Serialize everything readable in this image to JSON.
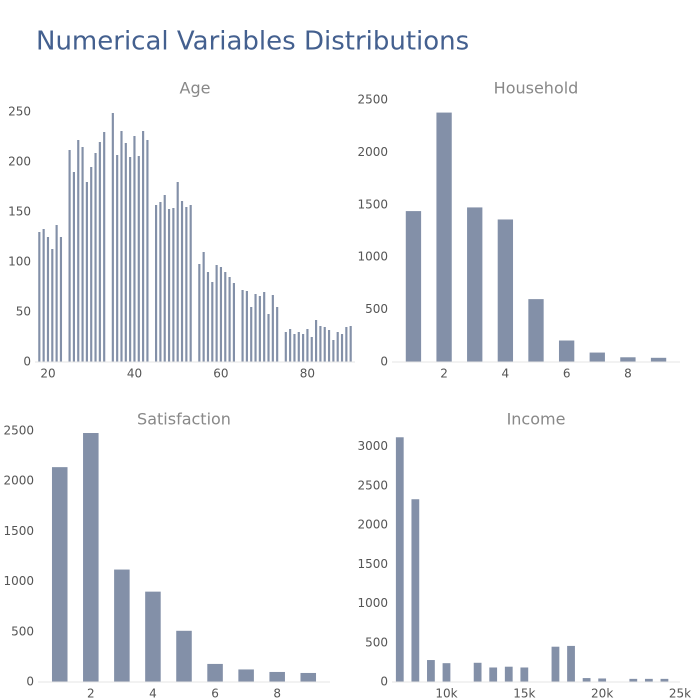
{
  "title": "Numerical Variables Distributions",
  "chart_data": [
    {
      "type": "bar",
      "title": "Age",
      "color": "#8390a8",
      "x": [
        18,
        19,
        20,
        21,
        22,
        23,
        25,
        26,
        27,
        28,
        29,
        30,
        31,
        32,
        33,
        35,
        36,
        37,
        38,
        39,
        40,
        41,
        42,
        43,
        45,
        46,
        47,
        48,
        49,
        50,
        51,
        52,
        53,
        55,
        56,
        57,
        58,
        59,
        60,
        61,
        62,
        63,
        65,
        66,
        67,
        68,
        69,
        70,
        71,
        72,
        73,
        75,
        76,
        77,
        78,
        79,
        80,
        81,
        82,
        83,
        84,
        85,
        86,
        87,
        88,
        89,
        90
      ],
      "values": [
        130,
        133,
        125,
        113,
        137,
        125,
        212,
        190,
        222,
        215,
        180,
        195,
        209,
        220,
        230,
        249,
        207,
        231,
        219,
        205,
        226,
        206,
        231,
        222,
        157,
        160,
        167,
        153,
        154,
        180,
        161,
        155,
        157,
        98,
        110,
        90,
        80,
        97,
        95,
        90,
        85,
        79,
        72,
        71,
        55,
        68,
        66,
        70,
        48,
        67,
        55,
        30,
        33,
        28,
        30,
        28,
        33,
        25,
        42,
        36,
        35,
        32,
        22,
        30,
        28,
        35,
        36
      ],
      "xlim": [
        17,
        91
      ],
      "xticks": [
        20,
        40,
        60,
        80
      ],
      "ylim": [
        0,
        262
      ],
      "yticks": [
        0,
        50,
        100,
        150,
        200,
        250
      ]
    },
    {
      "type": "bar",
      "title": "Household",
      "color": "#8390a8",
      "x": [
        1,
        2,
        3,
        4,
        5,
        6,
        7,
        8,
        9
      ],
      "values": [
        1440,
        2380,
        1475,
        1360,
        600,
        205,
        90,
        45,
        40
      ],
      "xlim": [
        0.3,
        9.7
      ],
      "xticks": [
        2,
        4,
        6,
        8
      ],
      "ylim": [
        0,
        2500
      ],
      "yticks": [
        0,
        500,
        1000,
        1500,
        2000,
        2500
      ]
    },
    {
      "type": "bar",
      "title": "Satisfaction",
      "color": "#8390a8",
      "x": [
        1,
        2,
        3,
        4,
        5,
        6,
        7,
        8,
        9
      ],
      "values": [
        2140,
        2480,
        1120,
        900,
        510,
        180,
        125,
        100,
        90
      ],
      "xlim": [
        0.3,
        9.7
      ],
      "xticks": [
        2,
        4,
        6,
        8
      ],
      "ylim": [
        0,
        2500
      ],
      "yticks": [
        0,
        500,
        1000,
        1500,
        2000,
        2500
      ]
    },
    {
      "type": "bar",
      "title": "Income",
      "color": "#8390a8",
      "x": [
        7000,
        8000,
        9000,
        10000,
        12000,
        13000,
        14000,
        15000,
        17000,
        18000,
        19000,
        20000,
        22000,
        23000,
        24000
      ],
      "values": [
        3120,
        2330,
        280,
        240,
        245,
        185,
        195,
        185,
        450,
        460,
        50,
        45,
        40,
        40,
        40
      ],
      "xlim": [
        6500,
        25000
      ],
      "xticks": [
        {
          "value": 10000,
          "label": "10k"
        },
        {
          "value": 15000,
          "label": "15k"
        },
        {
          "value": 20000,
          "label": "20k"
        },
        {
          "value": 25000,
          "label": "25k"
        }
      ],
      "ylim": [
        0,
        3200
      ],
      "yticks": [
        0,
        500,
        1000,
        1500,
        2000,
        2500,
        3000
      ]
    }
  ]
}
